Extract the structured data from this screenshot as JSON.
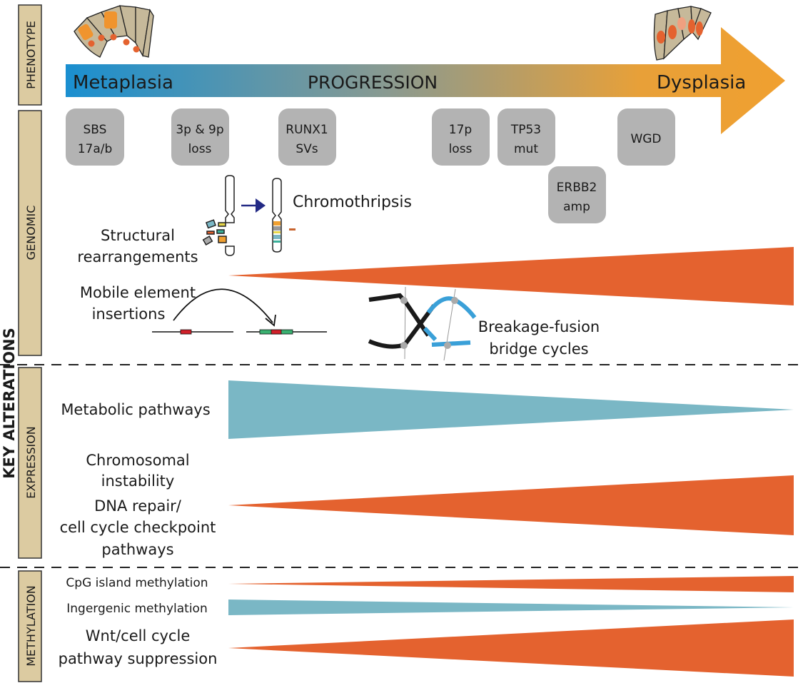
{
  "side_labels": {
    "overall": "KEY ALTERATIONS",
    "phenotype": "PHENOTYPE",
    "genomic": "GENOMIC",
    "expression": "EXPRESSION",
    "methylation": "METHYLATION"
  },
  "progression": {
    "start": "Metaplasia",
    "middle": "PROGRESSION",
    "end": "Dysplasia",
    "gradient_colors": [
      "#1a8fd0",
      "#8a9a90",
      "#f0a030"
    ]
  },
  "events": [
    {
      "line1": "SBS",
      "line2": "17a/b"
    },
    {
      "line1": "3p & 9p",
      "line2": "loss"
    },
    {
      "line1": "RUNX1",
      "line2": "SVs"
    },
    {
      "line1": "17p",
      "line2": "loss"
    },
    {
      "line1": "TP53",
      "line2": "mut"
    },
    {
      "line1": "WGD",
      "line2": ""
    },
    {
      "line1": "ERBB2",
      "line2": "amp"
    }
  ],
  "genomic": {
    "chromothripsis": "Chromothripsis",
    "structural": [
      "Structural",
      "rearrangements"
    ],
    "mobile": [
      "Mobile element",
      "insertions"
    ],
    "bfb": [
      "Breakage-fusion",
      "bridge cycles"
    ]
  },
  "expression": {
    "metabolic": "Metabolic pathways",
    "cin": [
      "Chromosomal",
      "instability",
      "DNA repair/",
      "cell cycle checkpoint",
      "pathways"
    ]
  },
  "methylation": {
    "cpg": "CpG island methylation",
    "intergenic": "Ingergenic methylation",
    "wnt": [
      "Wnt/cell cycle",
      "pathway suppression"
    ]
  },
  "colors": {
    "increase": "#e4622f",
    "decrease": "#7ab7c5",
    "event_box": "#b3b3b3",
    "label_box": "#dccba1"
  }
}
